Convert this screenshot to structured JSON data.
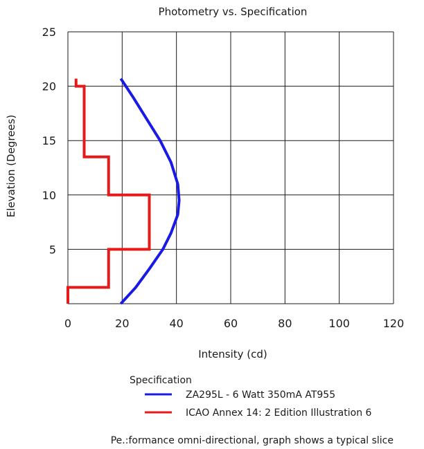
{
  "chart_data": {
    "type": "line",
    "title": "Photometry vs. Specification",
    "xlabel": "Intensity (cd)",
    "ylabel": "Elevation (Degrees)",
    "xlim": [
      0,
      120
    ],
    "ylim": [
      0,
      25
    ],
    "xticks": [
      "0",
      "20",
      "40",
      "60",
      "80",
      "100",
      "120"
    ],
    "yticks": [
      "5",
      "10",
      "15",
      "20",
      "25"
    ],
    "grid": true,
    "legend_title": "Specification",
    "legend_position": "bottom",
    "series": [
      {
        "name": "ZA295L - 6 Watt 350mA AT955",
        "color": "#1a1ae6",
        "x": [
          19.5,
          25,
          30,
          35,
          38,
          40.5,
          41,
          40.5,
          38,
          34,
          29,
          24,
          19.5
        ],
        "y": [
          0,
          1.5,
          3.2,
          5,
          6.5,
          8.2,
          9.5,
          11,
          13,
          15,
          17,
          19,
          20.7
        ]
      },
      {
        "name": "ICAO Annex 14: 2 Edition Illustration 6",
        "color": "#e61a1a",
        "x": [
          0,
          0,
          15,
          15,
          30,
          30,
          15,
          15,
          6,
          6,
          3,
          3
        ],
        "y": [
          0,
          1.5,
          1.5,
          5,
          5,
          10,
          10,
          13.5,
          13.5,
          20,
          20,
          20.7
        ]
      }
    ],
    "footnote": "Pe.:formance omni-directional, graph shows a typical slice"
  }
}
